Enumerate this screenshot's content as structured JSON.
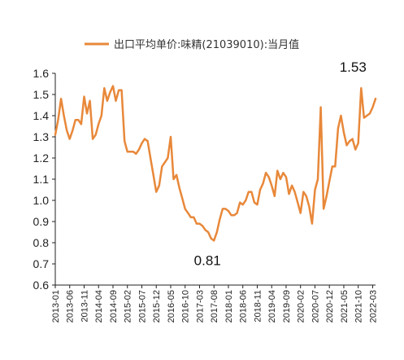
{
  "chart_data": {
    "type": "line",
    "title": "",
    "xlabel": "",
    "ylabel": "",
    "ylim": [
      0.6,
      1.6
    ],
    "yticks": [
      "0.6",
      "0.7",
      "0.8",
      "0.9",
      "1.0",
      "1.1",
      "1.2",
      "1.3",
      "1.4",
      "1.5",
      "1.6"
    ],
    "xtick_labels": [
      "2013-01",
      "2013-06",
      "2013-11",
      "2014-04",
      "2014-09",
      "2015-02",
      "2015-07",
      "2015-12",
      "2016-05",
      "2016-10",
      "2017-03",
      "2017-08",
      "2018-01",
      "2018-06",
      "2018-11",
      "2019-04",
      "2019-09",
      "2020-02",
      "2020-07",
      "2020-12",
      "2021-05",
      "2021-10",
      "2022-03"
    ],
    "grid": false,
    "legend_position": "top",
    "series": [
      {
        "name": "出口平均单价:味精(21039010):当月值",
        "color": "#E8883A",
        "x": [
          "2013-01",
          "2013-02",
          "2013-03",
          "2013-04",
          "2013-05",
          "2013-06",
          "2013-07",
          "2013-08",
          "2013-09",
          "2013-10",
          "2013-11",
          "2013-12",
          "2014-01",
          "2014-02",
          "2014-03",
          "2014-04",
          "2014-05",
          "2014-06",
          "2014-07",
          "2014-08",
          "2014-09",
          "2014-10",
          "2014-11",
          "2014-12",
          "2015-01",
          "2015-02",
          "2015-03",
          "2015-04",
          "2015-05",
          "2015-06",
          "2015-07",
          "2015-08",
          "2015-09",
          "2015-10",
          "2015-11",
          "2015-12",
          "2016-01",
          "2016-02",
          "2016-03",
          "2016-04",
          "2016-05",
          "2016-06",
          "2016-07",
          "2016-08",
          "2016-09",
          "2016-10",
          "2016-11",
          "2016-12",
          "2017-01",
          "2017-02",
          "2017-03",
          "2017-04",
          "2017-05",
          "2017-06",
          "2017-07",
          "2017-08",
          "2017-09",
          "2017-10",
          "2017-11",
          "2017-12",
          "2018-01",
          "2018-02",
          "2018-03",
          "2018-04",
          "2018-05",
          "2018-06",
          "2018-07",
          "2018-08",
          "2018-09",
          "2018-10",
          "2018-11",
          "2018-12",
          "2019-01",
          "2019-02",
          "2019-03",
          "2019-04",
          "2019-05",
          "2019-06",
          "2019-07",
          "2019-08",
          "2019-09",
          "2019-10",
          "2019-11",
          "2019-12",
          "2020-01",
          "2020-02",
          "2020-03",
          "2020-04",
          "2020-05",
          "2020-06",
          "2020-07",
          "2020-08",
          "2020-09",
          "2020-10",
          "2020-11",
          "2020-12",
          "2021-01",
          "2021-02",
          "2021-03",
          "2021-04",
          "2021-05",
          "2021-06",
          "2021-07",
          "2021-08",
          "2021-09",
          "2021-10",
          "2021-11",
          "2021-12",
          "2022-01",
          "2022-02",
          "2022-03",
          "2022-04"
        ],
        "values": [
          1.31,
          1.38,
          1.48,
          1.4,
          1.33,
          1.29,
          1.33,
          1.38,
          1.38,
          1.36,
          1.49,
          1.41,
          1.47,
          1.29,
          1.31,
          1.36,
          1.4,
          1.53,
          1.47,
          1.51,
          1.54,
          1.47,
          1.52,
          1.52,
          1.28,
          1.23,
          1.23,
          1.23,
          1.22,
          1.24,
          1.27,
          1.29,
          1.28,
          1.2,
          1.12,
          1.04,
          1.07,
          1.16,
          1.18,
          1.2,
          1.3,
          1.1,
          1.12,
          1.06,
          1.01,
          0.96,
          0.94,
          0.92,
          0.92,
          0.89,
          0.89,
          0.88,
          0.86,
          0.85,
          0.82,
          0.81,
          0.85,
          0.91,
          0.96,
          0.96,
          0.95,
          0.93,
          0.93,
          0.94,
          0.99,
          0.98,
          1.0,
          1.04,
          1.04,
          0.99,
          0.98,
          1.05,
          1.08,
          1.13,
          1.11,
          1.07,
          1.02,
          1.14,
          1.1,
          1.13,
          1.11,
          1.03,
          1.07,
          1.04,
          0.99,
          0.94,
          1.04,
          1.02,
          0.97,
          0.89,
          1.05,
          1.1,
          1.44,
          0.96,
          1.02,
          1.09,
          1.16,
          1.16,
          1.34,
          1.4,
          1.32,
          1.26,
          1.28,
          1.29,
          1.24,
          1.27,
          1.53,
          1.39,
          1.4,
          1.41,
          1.44,
          1.48
        ]
      }
    ],
    "annotations": [
      {
        "text": "1.53",
        "x": "2021-11",
        "y": 1.53
      },
      {
        "text": "0.81",
        "x": "2017-08",
        "y": 0.81
      }
    ]
  }
}
